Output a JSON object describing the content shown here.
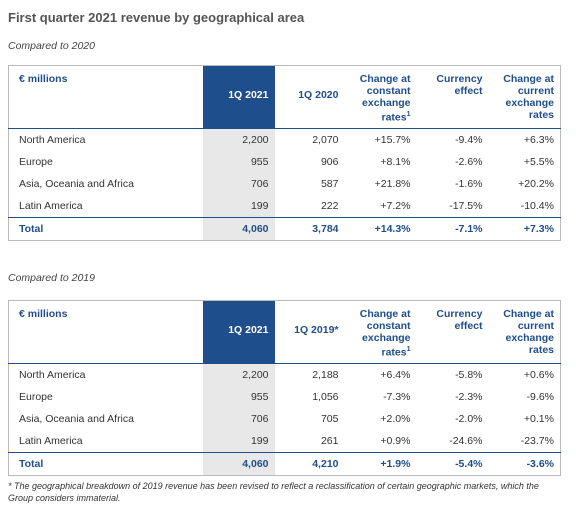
{
  "title": "First quarter 2021 revenue by geographical area",
  "tables": [
    {
      "caption": "Compared to 2020",
      "header": [
        {
          "text": "€ millions"
        },
        {
          "text": "1Q 2021"
        },
        {
          "text": "1Q 2020"
        },
        {
          "text": "Change at constant exchange rates",
          "note": "1"
        },
        {
          "text": "Currency effect"
        },
        {
          "text": "Change at current exchange rates"
        }
      ],
      "rows": [
        [
          "North America",
          "2,200",
          "2,070",
          "+15.7%",
          "-9.4%",
          "+6.3%"
        ],
        [
          "Europe",
          "955",
          "906",
          "+8.1%",
          "-2.6%",
          "+5.5%"
        ],
        [
          "Asia, Oceania and Africa",
          "706",
          "587",
          "+21.8%",
          "-1.6%",
          "+20.2%"
        ],
        [
          "Latin America",
          "199",
          "222",
          "+7.2%",
          "-17.5%",
          "-10.4%"
        ]
      ],
      "total": [
        "Total",
        "4,060",
        "3,784",
        "+14.3%",
        "-7.1%",
        "+7.3%"
      ]
    },
    {
      "caption": "Compared to 2019",
      "header": [
        {
          "text": "€ millions"
        },
        {
          "text": "1Q 2021"
        },
        {
          "text": "1Q 2019*"
        },
        {
          "text": "Change at constant exchange rates",
          "note": "1"
        },
        {
          "text": "Currency effect"
        },
        {
          "text": "Change at current exchange rates"
        }
      ],
      "rows": [
        [
          "North America",
          "2,200",
          "2,188",
          "+6.4%",
          "-5.8%",
          "+0.6%"
        ],
        [
          "Europe",
          "955",
          "1,056",
          "-7.3%",
          "-2.3%",
          "-9.6%"
        ],
        [
          "Asia, Oceania and Africa",
          "706",
          "705",
          "+2.0%",
          "-2.0%",
          "+0.1%"
        ],
        [
          "Latin America",
          "199",
          "261",
          "+0.9%",
          "-24.6%",
          "-23.7%"
        ]
      ],
      "total": [
        "Total",
        "4,060",
        "4,210",
        "+1.9%",
        "-5.4%",
        "-3.6%"
      ]
    }
  ],
  "footnote": {
    "marker": "*",
    "text": "The geographical breakdown of 2019 revenue has been revised to reflect a reclassification of certain geographic markets, which the Group considers immaterial."
  }
}
